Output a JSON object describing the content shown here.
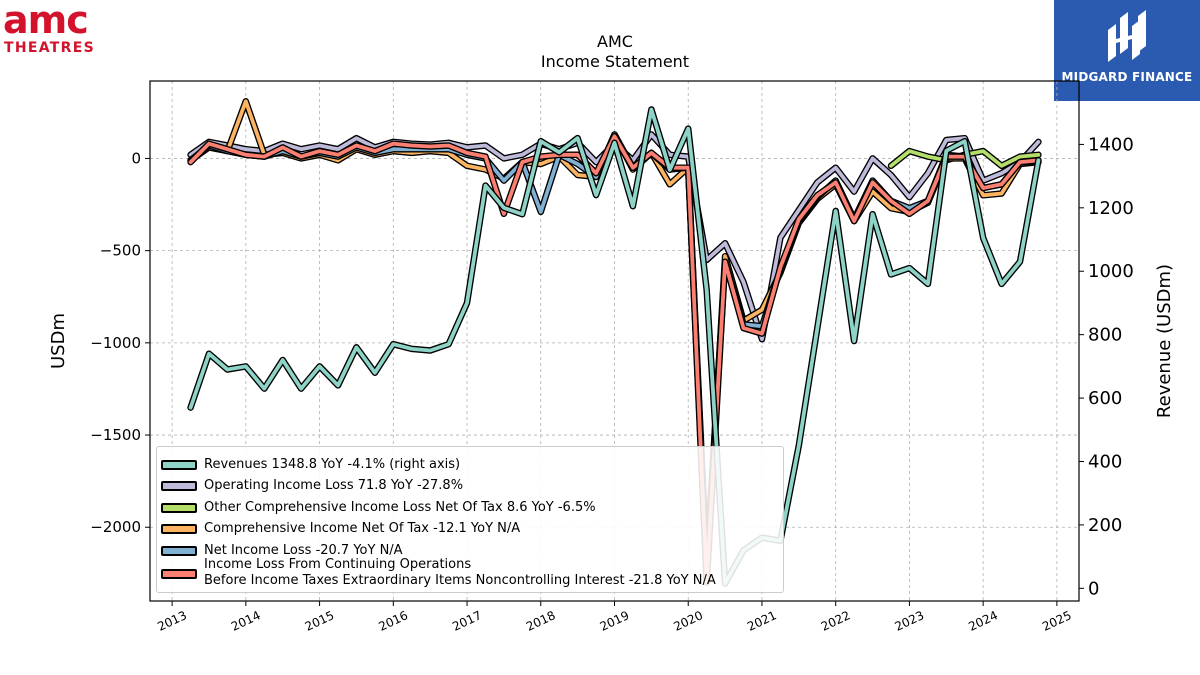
{
  "logos": {
    "amc_top": "amc",
    "amc_bottom": "THEATRES",
    "midgard": "MIDGARD FINANCE"
  },
  "chart_data": {
    "type": "line",
    "title": "AMC",
    "subtitle": "Income Statement",
    "ylabel": "USDm",
    "ylabel_right": "Revenue (USDm)",
    "ylim": [
      -2400,
      420
    ],
    "ylim_right": [
      -40,
      1600
    ],
    "y_ticks": [
      0,
      -500,
      -1000,
      -1500,
      -2000
    ],
    "y_tick_labels": [
      "0",
      "−500",
      "−1000",
      "−1500",
      "−2000"
    ],
    "y_right_ticks": [
      0,
      200,
      400,
      600,
      800,
      1000,
      1200,
      1400
    ],
    "y_right_tick_labels": [
      "0",
      "200",
      "400",
      "600",
      "800",
      "1000",
      "1200",
      "1400"
    ],
    "xlim": [
      2012.7,
      2025.3
    ],
    "x_ticks": [
      2013,
      2014,
      2015,
      2016,
      2017,
      2018,
      2019,
      2020,
      2021,
      2022,
      2023,
      2024,
      2025
    ],
    "x_tick_labels": [
      "2013",
      "2014",
      "2015",
      "2016",
      "2017",
      "2018",
      "2019",
      "2020",
      "2021",
      "2022",
      "2023",
      "2024",
      "2025"
    ],
    "grid": true,
    "legend_position": "lower-left",
    "series": [
      {
        "name": "Revenues",
        "legend": "Revenues  1348.8 YoY -4.1% (right axis)",
        "color": "#8dd3c7",
        "axis": "right",
        "x": [
          2013.25,
          2013.5,
          2013.75,
          2014.0,
          2014.25,
          2014.5,
          2014.75,
          2015.0,
          2015.25,
          2015.5,
          2015.75,
          2016.0,
          2016.25,
          2016.5,
          2016.75,
          2017.0,
          2017.25,
          2017.5,
          2017.75,
          2018.0,
          2018.25,
          2018.5,
          2018.75,
          2019.0,
          2019.25,
          2019.5,
          2019.75,
          2020.0,
          2020.25,
          2020.5,
          2020.75,
          2021.0,
          2021.25,
          2021.5,
          2021.75,
          2022.0,
          2022.25,
          2022.5,
          2022.75,
          2023.0,
          2023.25,
          2023.5,
          2023.75,
          2024.0,
          2024.25,
          2024.5,
          2024.75
        ],
        "values": [
          570,
          740,
          690,
          700,
          630,
          720,
          630,
          700,
          640,
          760,
          680,
          770,
          755,
          750,
          770,
          900,
          1270,
          1200,
          1180,
          1410,
          1375,
          1420,
          1240,
          1405,
          1205,
          1510,
          1320,
          1450,
          940,
          15,
          120,
          160,
          150,
          450,
          820,
          1190,
          780,
          1180,
          990,
          1010,
          960,
          1380,
          1410,
          1105,
          960,
          1030,
          1350
        ]
      },
      {
        "name": "Operating Income Loss",
        "legend": "Operating Income Loss  71.8 YoY -27.8%",
        "color": "#bebada",
        "axis": "left",
        "x": [
          2013.25,
          2013.5,
          2013.75,
          2014.0,
          2014.25,
          2014.5,
          2014.75,
          2015.0,
          2015.25,
          2015.5,
          2015.75,
          2016.0,
          2016.25,
          2016.5,
          2016.75,
          2017.0,
          2017.25,
          2017.5,
          2017.75,
          2018.0,
          2018.25,
          2018.5,
          2018.75,
          2019.0,
          2019.25,
          2019.5,
          2019.75,
          2020.0,
          2020.25,
          2020.5,
          2020.75,
          2021.0,
          2021.25,
          2021.5,
          2021.75,
          2022.0,
          2022.25,
          2022.5,
          2022.75,
          2023.0,
          2023.25,
          2023.5,
          2023.75,
          2024.0,
          2024.25,
          2024.5,
          2024.75
        ],
        "values": [
          20,
          90,
          70,
          50,
          40,
          80,
          50,
          70,
          50,
          110,
          60,
          90,
          80,
          75,
          85,
          60,
          70,
          0,
          20,
          80,
          50,
          85,
          -20,
          80,
          -10,
          130,
          20,
          10,
          -550,
          -460,
          -670,
          -980,
          -430,
          -280,
          -130,
          -50,
          -180,
          0,
          -90,
          -210,
          -80,
          100,
          110,
          -120,
          -80,
          -20,
          90
        ]
      },
      {
        "name": "Other Comprehensive Income Loss Net Of Tax",
        "legend": "Other Comprehensive Income Loss Net Of Tax  8.6 YoY -6.5%",
        "color": "#b3de69",
        "axis": "left",
        "x": [
          2022.75,
          2023.0,
          2023.25,
          2023.5,
          2023.75,
          2024.0,
          2024.25,
          2024.5,
          2024.75
        ],
        "values": [
          -40,
          40,
          10,
          -10,
          20,
          40,
          -40,
          10,
          20
        ]
      },
      {
        "name": "Comprehensive Income Net Of Tax",
        "legend": "Comprehensive Income Net Of Tax  -12.1 YoY N/A",
        "color": "#fdb462",
        "axis": "left",
        "x": [
          2013.25,
          2013.5,
          2013.75,
          2014.0,
          2014.25,
          2014.5,
          2014.75,
          2015.0,
          2015.25,
          2015.5,
          2015.75,
          2016.0,
          2016.25,
          2016.5,
          2016.75,
          2017.0,
          2017.25,
          2017.5,
          2017.75,
          2018.0,
          2018.25,
          2018.5,
          2018.75,
          2019.0,
          2019.25,
          2019.5,
          2019.75,
          2020.0,
          2020.25,
          2020.5,
          2020.75,
          2021.0,
          2021.25,
          2021.5,
          2021.75,
          2022.0,
          2022.25,
          2022.5,
          2022.75,
          2023.0,
          2023.25,
          2023.5,
          2023.75,
          2024.0,
          2024.25,
          2024.5,
          2024.75
        ],
        "values": [
          -10,
          60,
          40,
          310,
          20,
          30,
          0,
          20,
          -10,
          50,
          20,
          40,
          30,
          40,
          30,
          -40,
          -60,
          -110,
          -20,
          -30,
          10,
          -90,
          -100,
          130,
          -60,
          30,
          -140,
          -50,
          -2250,
          -530,
          -880,
          -820,
          -620,
          -350,
          -220,
          -140,
          -340,
          -180,
          -270,
          -290,
          -240,
          0,
          0,
          -200,
          -190,
          -30,
          -20
        ]
      },
      {
        "name": "Net Income Loss",
        "legend": "Net Income Loss  -20.7 YoY N/A",
        "color": "#80b1d3",
        "axis": "left",
        "x": [
          2013.25,
          2013.5,
          2013.75,
          2014.0,
          2014.25,
          2014.5,
          2014.75,
          2015.0,
          2015.25,
          2015.5,
          2015.75,
          2016.0,
          2016.25,
          2016.5,
          2016.75,
          2017.0,
          2017.25,
          2017.5,
          2017.75,
          2018.0,
          2018.25,
          2018.5,
          2018.75,
          2019.0,
          2019.25,
          2019.5,
          2019.75,
          2020.0,
          2020.25,
          2020.5,
          2020.75,
          2021.0,
          2021.25,
          2021.5,
          2021.75,
          2022.0,
          2022.25,
          2022.5,
          2022.75,
          2023.0,
          2023.25,
          2023.5,
          2023.75,
          2024.0,
          2024.25,
          2024.5,
          2024.75
        ],
        "values": [
          -10,
          70,
          40,
          20,
          10,
          40,
          10,
          30,
          10,
          60,
          30,
          50,
          50,
          50,
          50,
          20,
          0,
          -120,
          -20,
          -290,
          20,
          -30,
          -100,
          130,
          -50,
          30,
          -60,
          -50,
          -2200,
          -560,
          -900,
          -910,
          -600,
          -340,
          -210,
          -120,
          -330,
          -120,
          -230,
          -270,
          -230,
          20,
          10,
          -160,
          -140,
          -20,
          -20
        ]
      },
      {
        "name": "Income Loss From Continuing Operations Before Income Taxes Extraordinary Items Noncontrolling Interest",
        "legend_line1": "Income Loss From Continuing Operations",
        "legend_line2": "Before Income Taxes Extraordinary Items Noncontrolling Interest  -21.8 YoY N/A",
        "color": "#fb8072",
        "axis": "left",
        "x": [
          2013.25,
          2013.5,
          2013.75,
          2014.0,
          2014.25,
          2014.5,
          2014.75,
          2015.0,
          2015.25,
          2015.5,
          2015.75,
          2016.0,
          2016.25,
          2016.5,
          2016.75,
          2017.0,
          2017.25,
          2017.5,
          2017.75,
          2018.0,
          2018.25,
          2018.5,
          2018.75,
          2019.0,
          2019.25,
          2019.5,
          2019.75,
          2020.0,
          2020.25,
          2020.5,
          2020.75,
          2021.0,
          2021.25,
          2021.5,
          2021.75,
          2022.0,
          2022.25,
          2022.5,
          2022.75,
          2023.0,
          2023.25,
          2023.5,
          2023.75,
          2024.0,
          2024.25,
          2024.5,
          2024.75
        ],
        "values": [
          -20,
          80,
          50,
          20,
          10,
          60,
          10,
          40,
          20,
          70,
          40,
          80,
          70,
          65,
          70,
          30,
          10,
          -300,
          -20,
          10,
          20,
          20,
          -80,
          120,
          -50,
          30,
          -50,
          -50,
          -2300,
          -560,
          -920,
          -950,
          -590,
          -330,
          -200,
          -130,
          -340,
          -130,
          -230,
          -300,
          -230,
          10,
          10,
          -160,
          -140,
          -20,
          -10
        ]
      }
    ]
  }
}
